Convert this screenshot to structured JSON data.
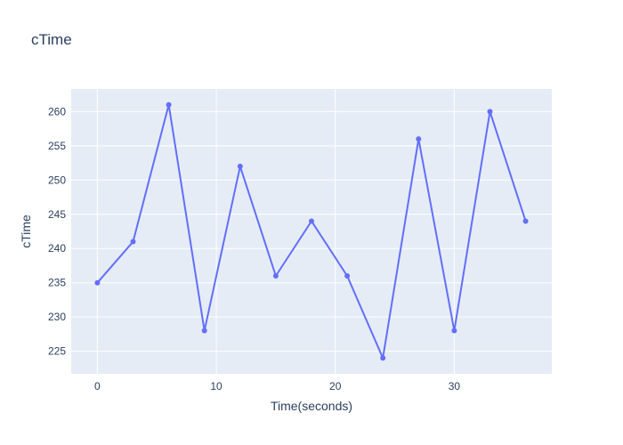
{
  "chart_data": {
    "type": "line",
    "title": "cTime",
    "xlabel": "Time(seconds)",
    "ylabel": "cTime",
    "x": [
      0,
      3,
      6,
      9,
      12,
      15,
      18,
      21,
      24,
      27,
      30,
      33,
      36
    ],
    "series": [
      {
        "values": [
          235,
          241,
          261,
          228,
          252,
          236,
          244,
          236,
          224,
          256,
          228,
          260,
          244
        ],
        "mode": "lines+markers"
      }
    ],
    "xlim": [
      -2.2,
      38.2
    ],
    "ylim": [
      221.7,
      263.3
    ],
    "x_ticks": [
      0,
      10,
      20,
      30
    ],
    "y_ticks": [
      225,
      230,
      235,
      240,
      245,
      250,
      255,
      260
    ],
    "grid": true
  },
  "colors": {
    "line": "#636efa",
    "plot_bg": "#e5ecf6",
    "grid": "#ffffff",
    "text": "#2a3f5f",
    "page_bg": "#ffffff"
  }
}
